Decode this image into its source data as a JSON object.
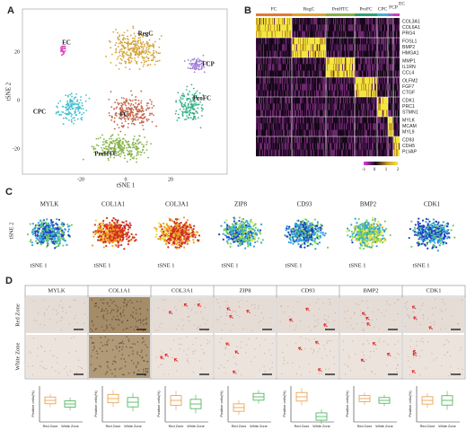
{
  "panels": {
    "A": {
      "label": "A",
      "x_label": "tSNE 1",
      "y_label": "tSNE 2",
      "x_ticks": [
        "-20",
        "0",
        "20"
      ],
      "y_ticks": [
        "20",
        "0",
        "-20"
      ],
      "clusters": [
        "EC",
        "RegC",
        "FCP",
        "CPC",
        "FC",
        "ProFC",
        "PreHTC"
      ]
    },
    "B": {
      "label": "B",
      "groups": [
        "FC",
        "RegC",
        "PreHTC",
        "ProFC",
        "CPC",
        "FCP",
        "EC"
      ],
      "genes": [
        [
          "COL3A1",
          "COL6A1",
          "PRG4"
        ],
        [
          "FOSL1",
          "BMP2",
          "HMGA1"
        ],
        [
          "MMP1",
          "IL1RN",
          "CCL4"
        ],
        [
          "OLFM2",
          "FGF7",
          "CTGF"
        ],
        [
          "CDK1",
          "PRC1",
          "STMN1"
        ],
        [
          "MYLK",
          "MCAM",
          "MYL9"
        ],
        [
          "CD93",
          "CDH5",
          "PLVAP"
        ]
      ],
      "colorbar_ticks": [
        "-1",
        "0",
        "1",
        "2"
      ]
    },
    "C": {
      "label": "C",
      "genes": [
        "MYLK",
        "COL1A1",
        "COL3A1",
        "ZIP8",
        "CD93",
        "BMP2",
        "CDK1"
      ],
      "x_label": "tSNE 1",
      "y_label": "tSNE 2"
    },
    "D": {
      "label": "D",
      "genes": [
        "MYLK",
        "COL1A1",
        "COL3A1",
        "ZIP8",
        "CD93",
        "BMP2",
        "CDK1"
      ],
      "rows": [
        "Red Zone",
        "White Zone"
      ],
      "y_label": "Positive cells(%)",
      "groups": [
        "Red Zone",
        "White Zone"
      ]
    }
  }
}
